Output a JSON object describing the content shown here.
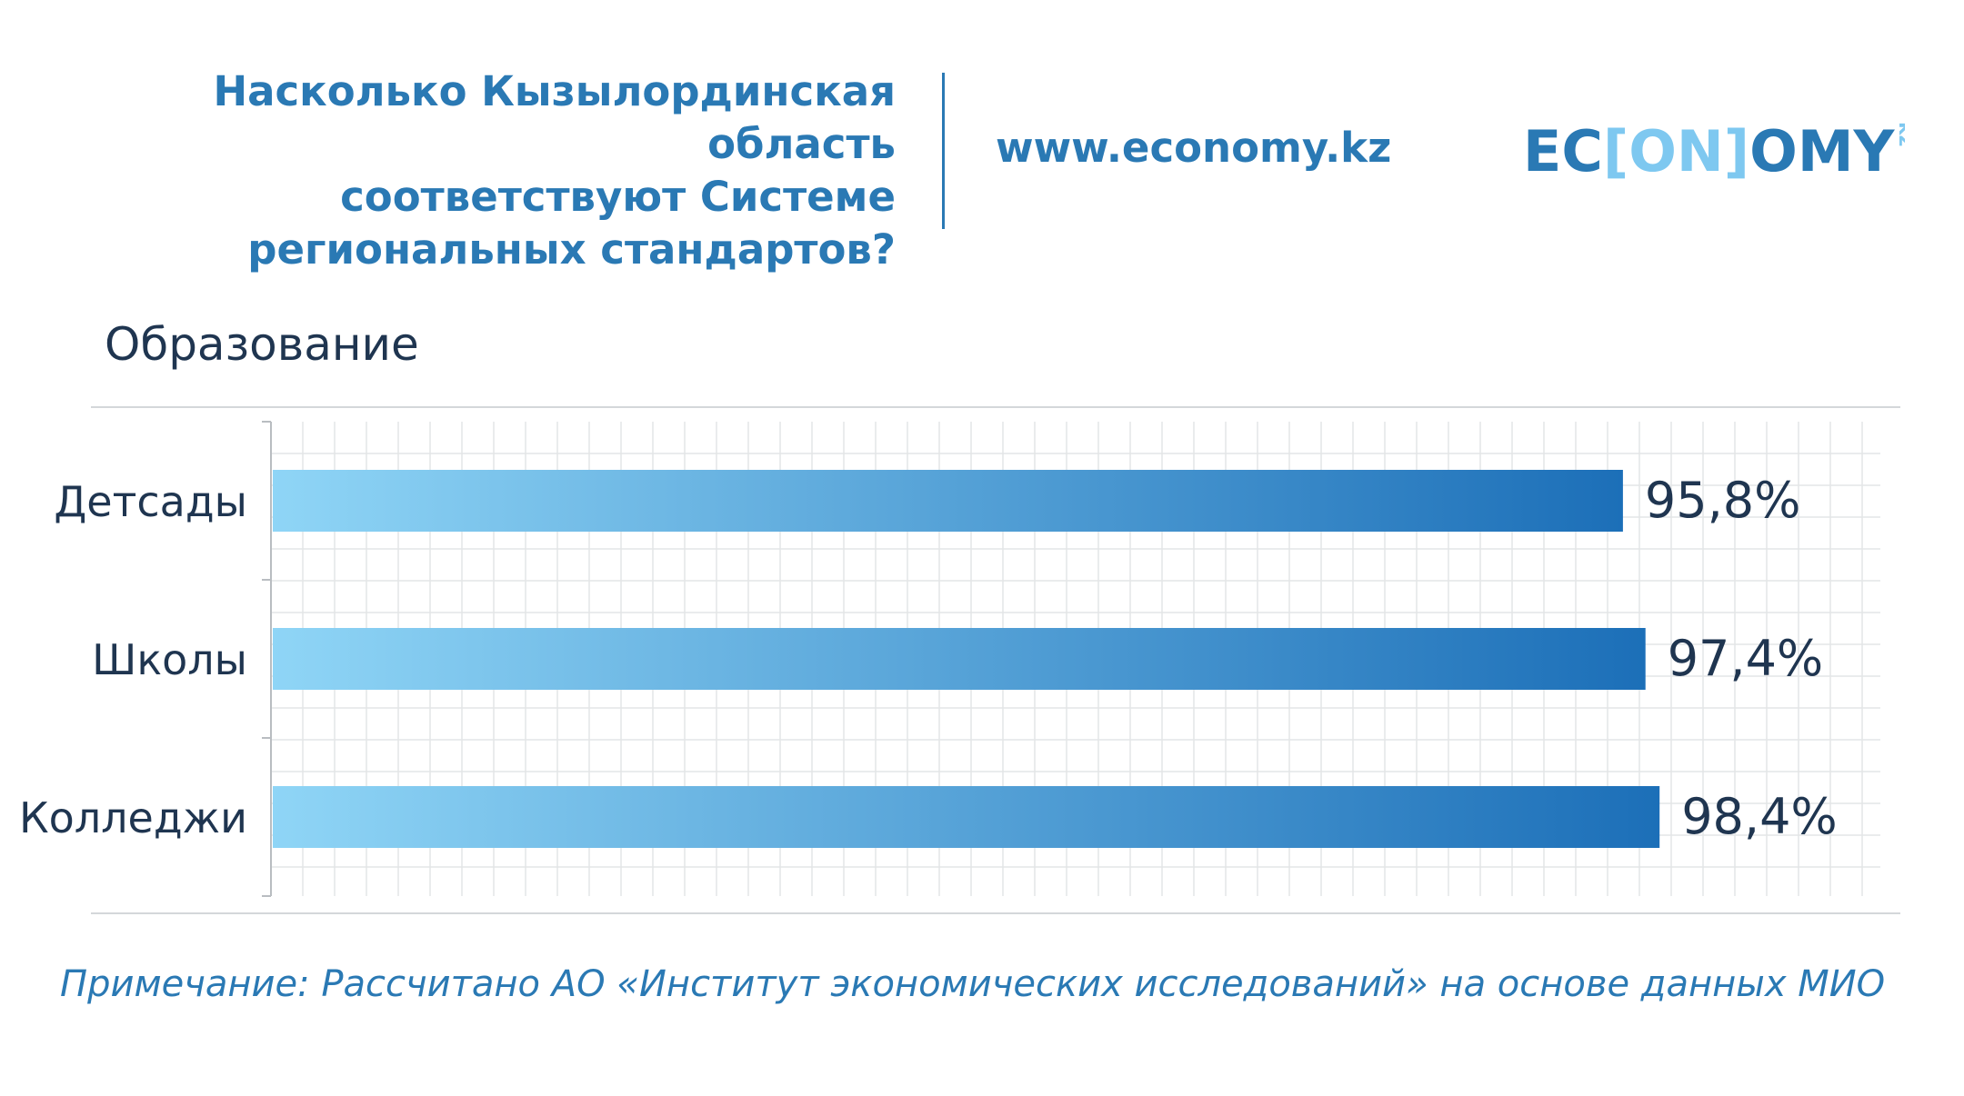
{
  "header": {
    "title_lines": [
      "Насколько Кызылординская область",
      "соответствуют Системе",
      "региональных стандартов?"
    ],
    "site_url": "www.economy.kz",
    "logo": {
      "left": "EC",
      "middle": "[ON]",
      "right": "OMY",
      "suffix": "kz"
    }
  },
  "section_title": "Образование",
  "colors": {
    "accent": "#2a79b4",
    "bar_start": "#8fd5f6",
    "bar_end": "#1c6fb8",
    "text_dark": "#1f3550",
    "grid": "#e3e5e7"
  },
  "chart_data": {
    "type": "bar",
    "orientation": "horizontal",
    "categories": [
      "Детсады",
      "Школы",
      "Колледжи"
    ],
    "values": [
      95.8,
      97.4,
      98.4
    ],
    "value_labels": [
      "95,8%",
      "97,4%",
      "98,4%"
    ],
    "xlim": [
      0,
      100
    ],
    "grid": true
  },
  "note": "Примечание: Рассчитано АО «Институт экономических исследований» на основе данных МИО"
}
